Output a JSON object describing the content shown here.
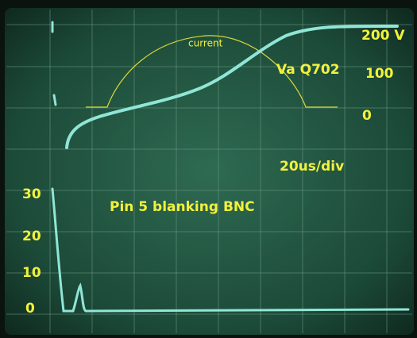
{
  "upper_scale": {
    "top": "200 V",
    "middle": "100",
    "bottom": "0"
  },
  "upper_trace_label": "Va Q702",
  "current_label": "current",
  "timebase": "20us/div",
  "lower_trace_label": "Pin 5 blanking BNC",
  "lower_scale": [
    "30",
    "20",
    "10",
    "0"
  ]
}
